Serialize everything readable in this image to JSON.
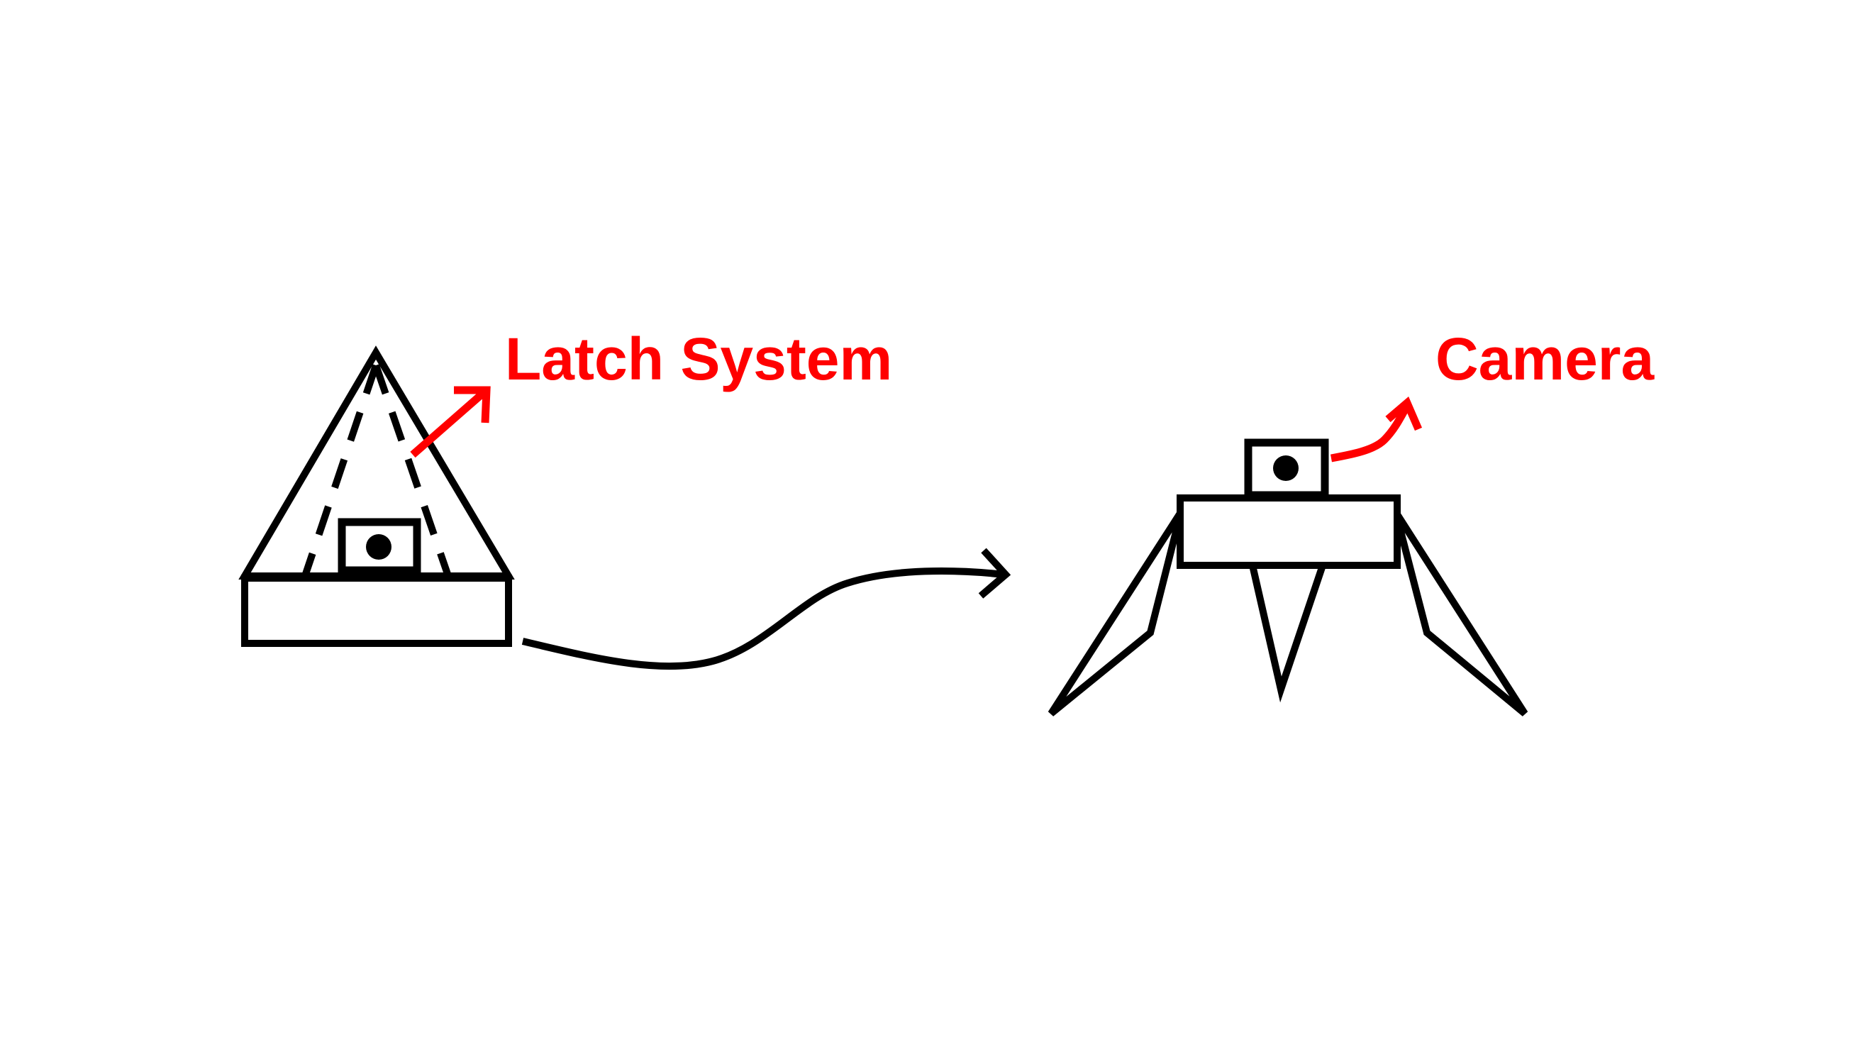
{
  "labels": {
    "latch_system": "Latch System",
    "camera": "Camera"
  },
  "colors": {
    "line": "#000000",
    "annotation": "#ff0000",
    "background": "#ffffff"
  },
  "items": {
    "closed_pod": "closed-pod-icon",
    "deployed_lander": "deployed-lander-icon",
    "transition_arrow": "transition-arrow-icon"
  }
}
